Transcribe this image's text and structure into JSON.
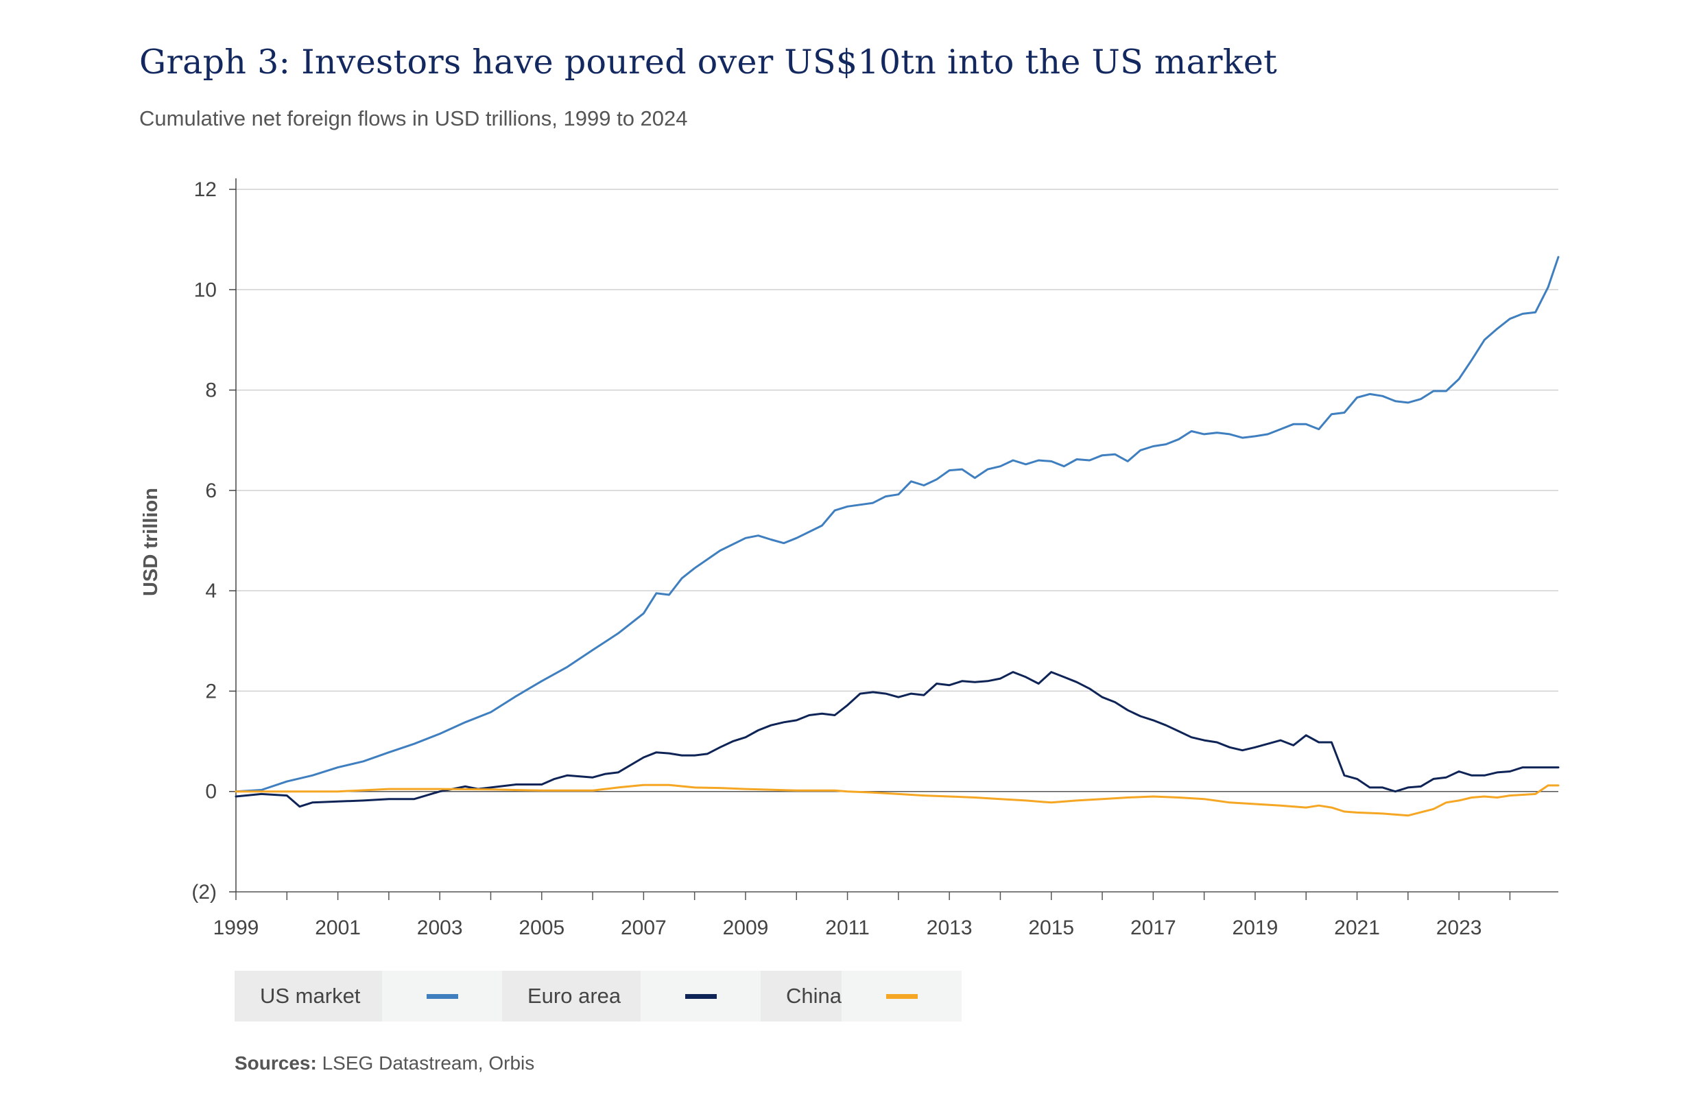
{
  "header": {
    "title": "Graph 3: Investors have poured over US$10tn into the US market",
    "subtitle": "Cumulative net foreign flows in USD trillions, 1999 to 2024"
  },
  "legend": {
    "items": [
      {
        "label": "US market",
        "color": "#3f7fbf"
      },
      {
        "label": "Euro area",
        "color": "#0f2456"
      },
      {
        "label": "China",
        "color": "#f5a623"
      }
    ]
  },
  "sources": {
    "label": "Sources:",
    "text": "LSEG Datastream, Orbis"
  },
  "chart_data": {
    "type": "line",
    "title": "Graph 3: Investors have poured over US$10tn into the US market",
    "subtitle": "Cumulative net foreign flows in USD trillions, 1999 to 2024",
    "xlabel": "",
    "ylabel": "USD trillion",
    "xlim": [
      1999,
      2024.95
    ],
    "ylim": [
      -2,
      12
    ],
    "x_ticks": [
      1999,
      2001,
      2003,
      2005,
      2007,
      2009,
      2011,
      2013,
      2015,
      2017,
      2019,
      2021,
      2023
    ],
    "y_ticks": [
      -2,
      0,
      2,
      4,
      6,
      8,
      10,
      12
    ],
    "y_tick_labels": [
      "(2)",
      "0",
      "2",
      "4",
      "6",
      "8",
      "10",
      "12"
    ],
    "gridlines": true,
    "legend_position": "bottom",
    "series": [
      {
        "name": "US market",
        "color": "#3f7fbf",
        "points": [
          [
            1999,
            0.0
          ],
          [
            1999.5,
            0.03
          ],
          [
            2000,
            0.2
          ],
          [
            2000.5,
            0.32
          ],
          [
            2001,
            0.48
          ],
          [
            2001.5,
            0.6
          ],
          [
            2002,
            0.78
          ],
          [
            2002.5,
            0.95
          ],
          [
            2003,
            1.15
          ],
          [
            2003.5,
            1.38
          ],
          [
            2004,
            1.58
          ],
          [
            2004.5,
            1.9
          ],
          [
            2005,
            2.2
          ],
          [
            2005.5,
            2.48
          ],
          [
            2006,
            2.82
          ],
          [
            2006.5,
            3.15
          ],
          [
            2007,
            3.55
          ],
          [
            2007.25,
            3.95
          ],
          [
            2007.5,
            3.92
          ],
          [
            2007.75,
            4.25
          ],
          [
            2008,
            4.45
          ],
          [
            2008.5,
            4.8
          ],
          [
            2009,
            5.05
          ],
          [
            2009.25,
            5.1
          ],
          [
            2009.5,
            5.02
          ],
          [
            2009.75,
            4.95
          ],
          [
            2010,
            5.05
          ],
          [
            2010.5,
            5.3
          ],
          [
            2010.75,
            5.6
          ],
          [
            2011,
            5.68
          ],
          [
            2011.5,
            5.75
          ],
          [
            2011.75,
            5.88
          ],
          [
            2012,
            5.92
          ],
          [
            2012.25,
            6.18
          ],
          [
            2012.5,
            6.1
          ],
          [
            2012.75,
            6.22
          ],
          [
            2013,
            6.4
          ],
          [
            2013.25,
            6.42
          ],
          [
            2013.5,
            6.25
          ],
          [
            2013.75,
            6.42
          ],
          [
            2014,
            6.48
          ],
          [
            2014.25,
            6.6
          ],
          [
            2014.5,
            6.52
          ],
          [
            2014.75,
            6.6
          ],
          [
            2015,
            6.58
          ],
          [
            2015.25,
            6.48
          ],
          [
            2015.5,
            6.62
          ],
          [
            2015.75,
            6.6
          ],
          [
            2016,
            6.7
          ],
          [
            2016.25,
            6.72
          ],
          [
            2016.5,
            6.58
          ],
          [
            2016.75,
            6.8
          ],
          [
            2017,
            6.88
          ],
          [
            2017.25,
            6.92
          ],
          [
            2017.5,
            7.02
          ],
          [
            2017.75,
            7.18
          ],
          [
            2018,
            7.12
          ],
          [
            2018.25,
            7.15
          ],
          [
            2018.5,
            7.12
          ],
          [
            2018.75,
            7.05
          ],
          [
            2019,
            7.08
          ],
          [
            2019.25,
            7.12
          ],
          [
            2019.5,
            7.22
          ],
          [
            2019.75,
            7.32
          ],
          [
            2020,
            7.32
          ],
          [
            2020.25,
            7.22
          ],
          [
            2020.5,
            7.52
          ],
          [
            2020.75,
            7.55
          ],
          [
            2021,
            7.85
          ],
          [
            2021.25,
            7.92
          ],
          [
            2021.5,
            7.88
          ],
          [
            2021.75,
            7.78
          ],
          [
            2022,
            7.75
          ],
          [
            2022.25,
            7.82
          ],
          [
            2022.5,
            7.98
          ],
          [
            2022.75,
            7.98
          ],
          [
            2023,
            8.22
          ],
          [
            2023.25,
            8.6
          ],
          [
            2023.5,
            9.0
          ],
          [
            2023.75,
            9.22
          ],
          [
            2024,
            9.42
          ],
          [
            2024.25,
            9.52
          ],
          [
            2024.5,
            9.55
          ],
          [
            2024.75,
            10.05
          ],
          [
            2024.95,
            10.65
          ]
        ]
      },
      {
        "name": "Euro area",
        "color": "#0f2456",
        "points": [
          [
            1999,
            -0.1
          ],
          [
            1999.5,
            -0.05
          ],
          [
            2000,
            -0.08
          ],
          [
            2000.25,
            -0.3
          ],
          [
            2000.5,
            -0.22
          ],
          [
            2001,
            -0.2
          ],
          [
            2001.5,
            -0.18
          ],
          [
            2002,
            -0.15
          ],
          [
            2002.5,
            -0.15
          ],
          [
            2003,
            0.0
          ],
          [
            2003.25,
            0.05
          ],
          [
            2003.5,
            0.1
          ],
          [
            2003.75,
            0.05
          ],
          [
            2004,
            0.08
          ],
          [
            2004.5,
            0.14
          ],
          [
            2005,
            0.14
          ],
          [
            2005.25,
            0.25
          ],
          [
            2005.5,
            0.32
          ],
          [
            2006,
            0.28
          ],
          [
            2006.25,
            0.35
          ],
          [
            2006.5,
            0.38
          ],
          [
            2007,
            0.68
          ],
          [
            2007.25,
            0.78
          ],
          [
            2007.5,
            0.76
          ],
          [
            2007.75,
            0.72
          ],
          [
            2008,
            0.72
          ],
          [
            2008.25,
            0.75
          ],
          [
            2008.5,
            0.88
          ],
          [
            2008.75,
            1.0
          ],
          [
            2009,
            1.08
          ],
          [
            2009.25,
            1.22
          ],
          [
            2009.5,
            1.32
          ],
          [
            2009.75,
            1.38
          ],
          [
            2010,
            1.42
          ],
          [
            2010.25,
            1.52
          ],
          [
            2010.5,
            1.55
          ],
          [
            2010.75,
            1.52
          ],
          [
            2011,
            1.72
          ],
          [
            2011.25,
            1.95
          ],
          [
            2011.5,
            1.98
          ],
          [
            2011.75,
            1.95
          ],
          [
            2012,
            1.88
          ],
          [
            2012.25,
            1.95
          ],
          [
            2012.5,
            1.92
          ],
          [
            2012.75,
            2.15
          ],
          [
            2013,
            2.12
          ],
          [
            2013.25,
            2.2
          ],
          [
            2013.5,
            2.18
          ],
          [
            2013.75,
            2.2
          ],
          [
            2014,
            2.25
          ],
          [
            2014.25,
            2.38
          ],
          [
            2014.5,
            2.28
          ],
          [
            2014.75,
            2.15
          ],
          [
            2015,
            2.38
          ],
          [
            2015.25,
            2.28
          ],
          [
            2015.5,
            2.18
          ],
          [
            2015.75,
            2.05
          ],
          [
            2016,
            1.88
          ],
          [
            2016.25,
            1.78
          ],
          [
            2016.5,
            1.62
          ],
          [
            2016.75,
            1.5
          ],
          [
            2017,
            1.42
          ],
          [
            2017.25,
            1.32
          ],
          [
            2017.5,
            1.2
          ],
          [
            2017.75,
            1.08
          ],
          [
            2018,
            1.02
          ],
          [
            2018.25,
            0.98
          ],
          [
            2018.5,
            0.88
          ],
          [
            2018.75,
            0.82
          ],
          [
            2019,
            0.88
          ],
          [
            2019.25,
            0.95
          ],
          [
            2019.5,
            1.02
          ],
          [
            2019.75,
            0.92
          ],
          [
            2020,
            1.12
          ],
          [
            2020.25,
            0.98
          ],
          [
            2020.5,
            0.98
          ],
          [
            2020.75,
            0.32
          ],
          [
            2021,
            0.25
          ],
          [
            2021.25,
            0.08
          ],
          [
            2021.5,
            0.08
          ],
          [
            2021.75,
            0.0
          ],
          [
            2022,
            0.08
          ],
          [
            2022.25,
            0.1
          ],
          [
            2022.5,
            0.25
          ],
          [
            2022.75,
            0.28
          ],
          [
            2023,
            0.4
          ],
          [
            2023.25,
            0.32
          ],
          [
            2023.5,
            0.32
          ],
          [
            2023.75,
            0.38
          ],
          [
            2024,
            0.4
          ],
          [
            2024.25,
            0.48
          ],
          [
            2024.5,
            0.48
          ],
          [
            2024.75,
            0.48
          ],
          [
            2024.95,
            0.48
          ]
        ]
      },
      {
        "name": "China",
        "color": "#f5a623",
        "points": [
          [
            1999,
            0.0
          ],
          [
            2000,
            0.0
          ],
          [
            2001,
            0.0
          ],
          [
            2002,
            0.05
          ],
          [
            2003,
            0.05
          ],
          [
            2004,
            0.04
          ],
          [
            2005,
            0.02
          ],
          [
            2006,
            0.02
          ],
          [
            2006.5,
            0.08
          ],
          [
            2007,
            0.13
          ],
          [
            2007.5,
            0.13
          ],
          [
            2008,
            0.08
          ],
          [
            2008.5,
            0.07
          ],
          [
            2009,
            0.05
          ],
          [
            2010,
            0.02
          ],
          [
            2010.75,
            0.02
          ],
          [
            2011,
            0.0
          ],
          [
            2011.5,
            -0.02
          ],
          [
            2012,
            -0.05
          ],
          [
            2012.5,
            -0.08
          ],
          [
            2013,
            -0.1
          ],
          [
            2013.5,
            -0.12
          ],
          [
            2014,
            -0.15
          ],
          [
            2014.5,
            -0.18
          ],
          [
            2015,
            -0.22
          ],
          [
            2015.5,
            -0.18
          ],
          [
            2016,
            -0.15
          ],
          [
            2016.5,
            -0.12
          ],
          [
            2017,
            -0.1
          ],
          [
            2017.5,
            -0.12
          ],
          [
            2018,
            -0.15
          ],
          [
            2018.5,
            -0.22
          ],
          [
            2019,
            -0.25
          ],
          [
            2019.5,
            -0.28
          ],
          [
            2020,
            -0.32
          ],
          [
            2020.25,
            -0.28
          ],
          [
            2020.5,
            -0.32
          ],
          [
            2020.75,
            -0.4
          ],
          [
            2021,
            -0.42
          ],
          [
            2021.5,
            -0.44
          ],
          [
            2022,
            -0.48
          ],
          [
            2022.5,
            -0.35
          ],
          [
            2022.75,
            -0.22
          ],
          [
            2023,
            -0.18
          ],
          [
            2023.25,
            -0.12
          ],
          [
            2023.5,
            -0.1
          ],
          [
            2023.75,
            -0.12
          ],
          [
            2024,
            -0.08
          ],
          [
            2024.5,
            -0.05
          ],
          [
            2024.75,
            0.12
          ],
          [
            2024.95,
            0.12
          ]
        ]
      }
    ]
  }
}
